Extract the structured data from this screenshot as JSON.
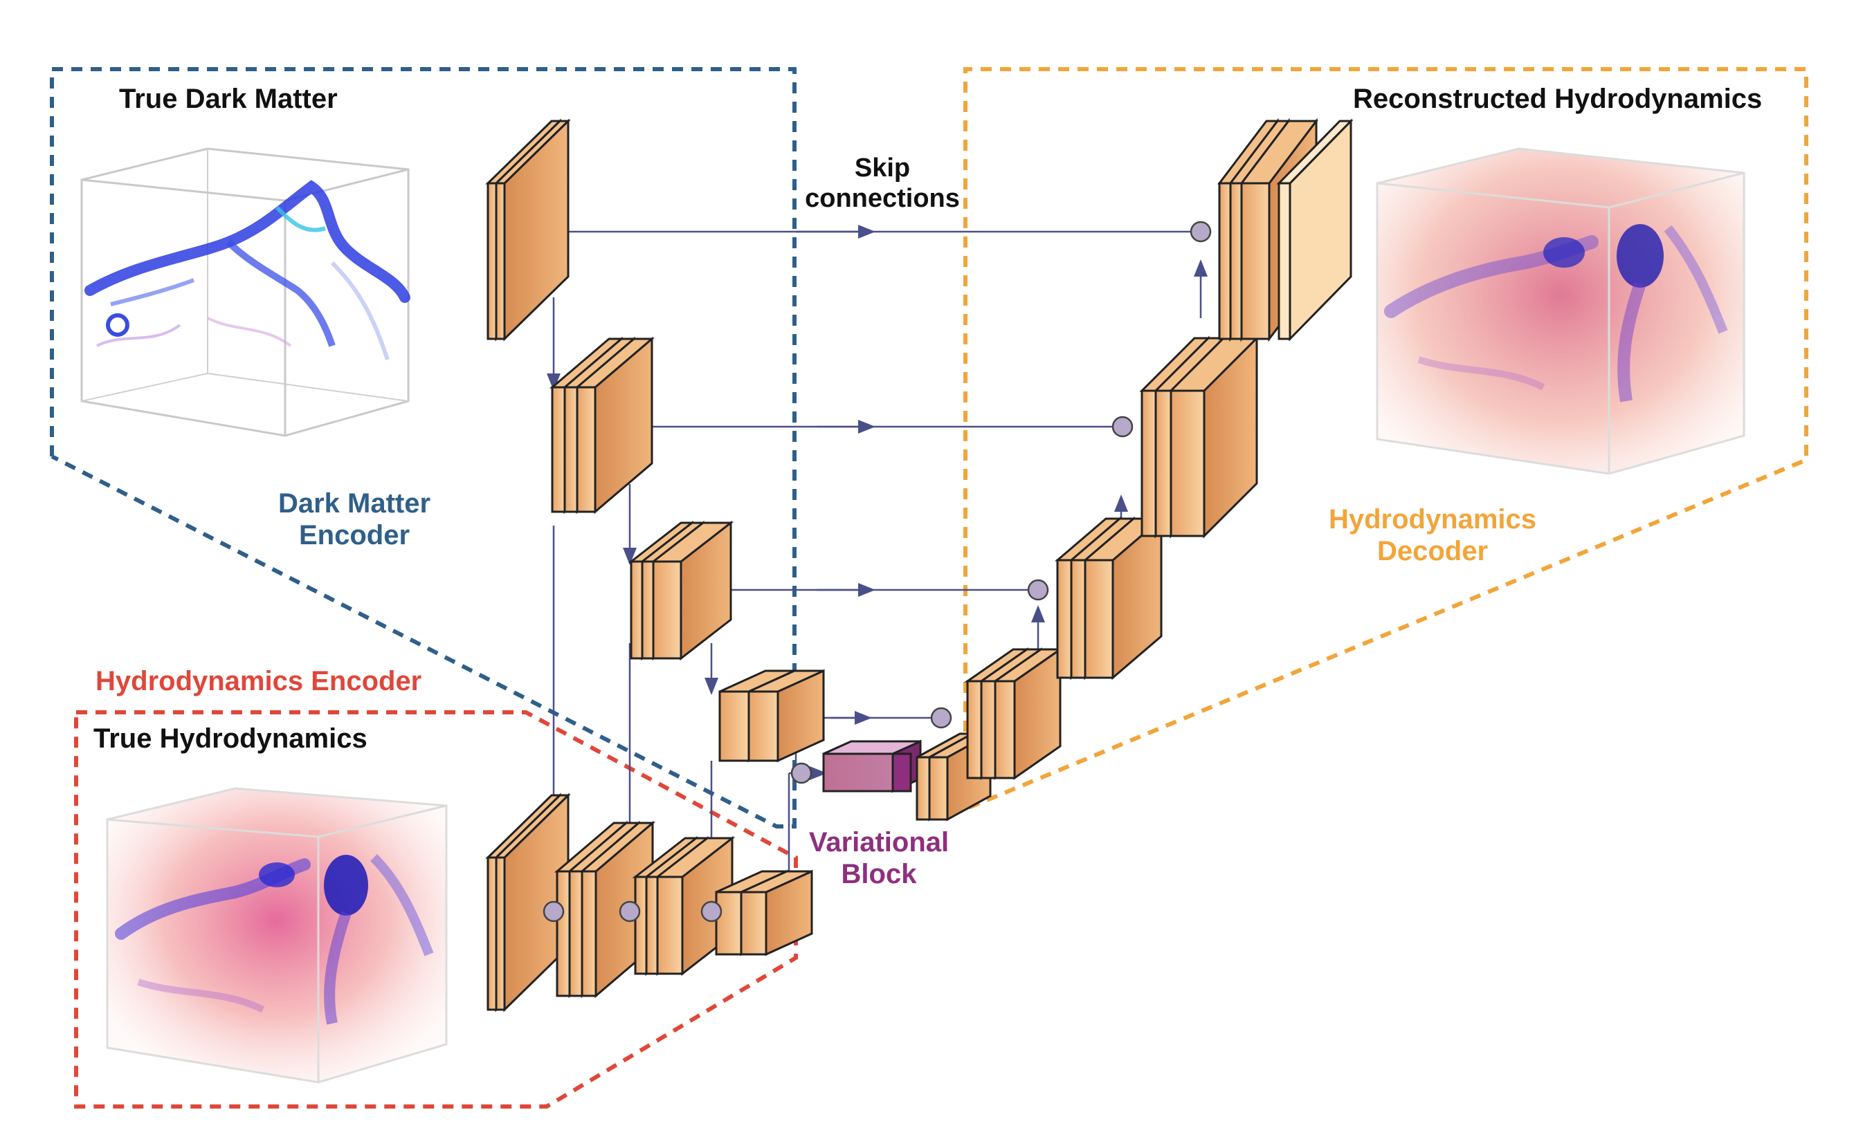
{
  "labels": {
    "true_dark_matter": "True Dark Matter",
    "dark_matter_encoder_line1": "Dark Matter",
    "dark_matter_encoder_line2": "Encoder",
    "hydro_encoder": "Hydrodynamics Encoder",
    "true_hydro": "True Hydrodynamics",
    "skip_line1": "Skip",
    "skip_line2": "connections",
    "variational_line1": "Variational",
    "variational_line2": "Block",
    "reconstructed_hydro": "Reconstructed Hydrodynamics",
    "hydro_decoder_line1": "Hydrodynamics",
    "hydro_decoder_line2": "Decoder"
  },
  "colors": {
    "dark_matter_box": "#2f5f8a",
    "hydro_encoder_box": "#e0473a",
    "decoder_box": "#f2a53a",
    "variational": "#8e2f7e",
    "layer_face": "#f6c48d",
    "layer_edge": "#222222",
    "connector": "#4a4f8a",
    "junction": "#b6a9c9"
  }
}
